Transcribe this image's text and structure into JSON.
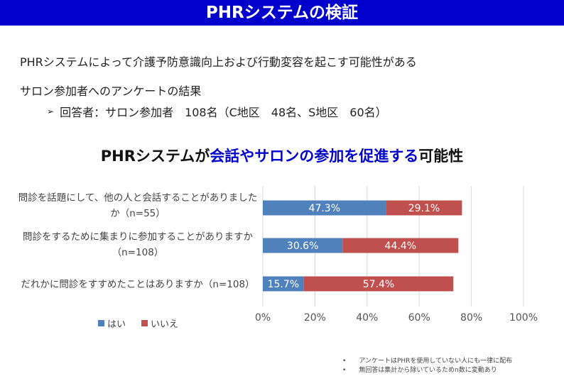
{
  "header": {
    "title": "PHRシステムの検証"
  },
  "intro": {
    "line1": "PHRシステムによって介護予防意識向上および行動変容を起こす可能性がある",
    "line2": "サロン参加者へのアンケートの結果",
    "bullet": "回答者：サロン参加者　108名（C地区　48名、S地区　60名）"
  },
  "chart_title": {
    "part1": "PHRシステムが",
    "part2": "会話やサロンの参加を促進する",
    "part3": "可能性"
  },
  "questions": [
    {
      "line1": "問診を話題にして、他の人と会話することがありました",
      "line2": "か（n=55）"
    },
    {
      "line1": "問診をするために集まりに参加することがありますか",
      "line2": "（n=108）"
    },
    {
      "line1": "だれかに問診をすすめたことはありますか（n=108）",
      "line2": ""
    }
  ],
  "legend": {
    "yes": "はい",
    "no": "いいえ"
  },
  "notes": [
    "アンケートはPHRを使用していない人にも一律に配布",
    "無回答は集計から除いているためn数に変動あり"
  ],
  "colors": {
    "yes": "#4f81bd",
    "no": "#c0504d",
    "header": "#0000cc"
  },
  "chart_data": {
    "type": "bar",
    "orientation": "horizontal",
    "stacked": true,
    "categories": [
      "問診を話題にして、他の人と会話することがありましたか（n=55）",
      "問診をするために集まりに参加することがありますか（n=108）",
      "だれかに問診をすすめたことはありますか（n=108）"
    ],
    "series": [
      {
        "name": "はい",
        "values": [
          47.3,
          30.6,
          15.7
        ],
        "labels": [
          "47.3%",
          "30.6%",
          "15.7%"
        ],
        "color": "#4f81bd"
      },
      {
        "name": "いいえ",
        "values": [
          29.1,
          44.4,
          57.4
        ],
        "labels": [
          "29.1%",
          "44.4%",
          "57.4%"
        ],
        "color": "#c0504d"
      }
    ],
    "xlim": [
      0,
      100
    ],
    "xticks": [
      "0%",
      "20%",
      "40%",
      "60%",
      "80%",
      "100%"
    ],
    "grid": true,
    "legend_position": "bottom-left"
  }
}
